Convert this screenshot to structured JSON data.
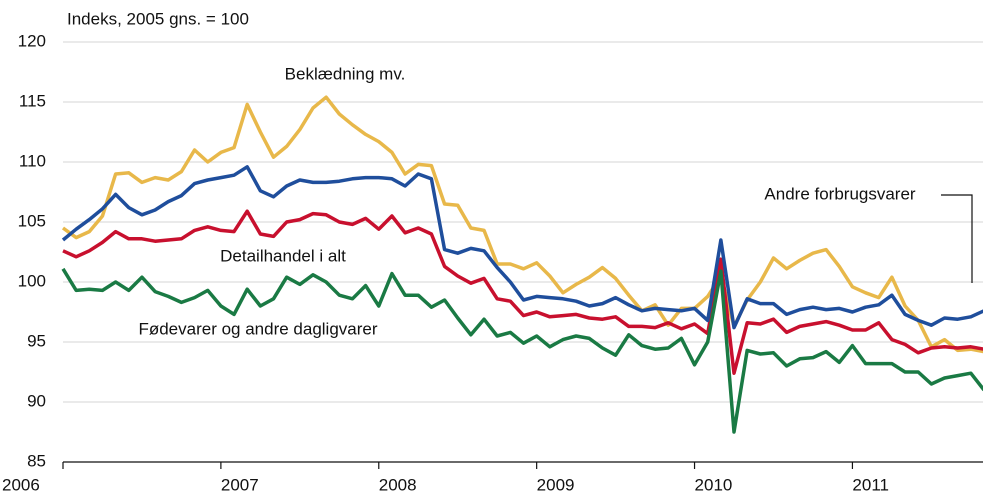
{
  "chart_data": {
    "type": "line",
    "ylabel": "Indeks, 2005 gns. = 100",
    "categories": [
      "2006",
      null,
      null,
      null,
      null,
      null,
      null,
      null,
      null,
      null,
      null,
      null,
      "2007",
      null,
      null,
      null,
      null,
      null,
      null,
      null,
      null,
      null,
      null,
      null,
      "2008",
      null,
      null,
      null,
      null,
      null,
      null,
      null,
      null,
      null,
      null,
      null,
      "2009",
      null,
      null,
      null,
      null,
      null,
      null,
      null,
      null,
      null,
      null,
      null,
      "2010",
      null,
      null,
      null,
      null,
      null,
      null,
      null,
      null,
      null,
      null,
      null,
      "2011",
      null,
      null,
      null,
      null,
      null,
      null,
      null,
      null,
      null,
      null
    ],
    "ylim": [
      85,
      120
    ],
    "yticks": [
      85,
      90,
      95,
      100,
      105,
      110,
      115,
      120
    ],
    "grid": true,
    "series": [
      {
        "name": "Beklædning mv.",
        "color": "#e8b84a",
        "values": [
          104.5,
          103.7,
          104.2,
          105.5,
          109,
          109.1,
          108.3,
          108.7,
          108.5,
          109.2,
          111,
          110,
          110.8,
          111.2,
          114.8,
          112.5,
          110.4,
          111.3,
          112.7,
          114.5,
          115.4,
          114,
          113.1,
          112.3,
          111.7,
          110.8,
          109,
          109.8,
          109.7,
          106.5,
          106.4,
          104.5,
          104.3,
          101.5,
          101.5,
          101.1,
          101.6,
          100.5,
          99.1,
          99.8,
          100.4,
          101.2,
          100.3,
          98.9,
          97.6,
          98.1,
          96.4,
          97.8,
          97.8,
          98.8,
          100.5,
          96.3,
          98.5,
          100,
          102,
          101.1,
          101.8,
          102.4,
          102.7,
          101.3,
          99.6,
          99.1,
          98.7,
          100.4,
          98,
          96.8,
          94.6,
          95.2,
          94.3,
          94.4,
          94.2
        ]
      },
      {
        "name": "Andre forbrugsvarer",
        "color": "#1f4e9c",
        "values": [
          103.5,
          104.4,
          105.2,
          106.1,
          107.3,
          106.2,
          105.6,
          106,
          106.7,
          107.2,
          108.2,
          108.5,
          108.7,
          108.9,
          109.6,
          107.6,
          107.1,
          108,
          108.5,
          108.3,
          108.3,
          108.4,
          108.6,
          108.7,
          108.7,
          108.6,
          108,
          109,
          108.6,
          102.7,
          102.4,
          102.8,
          102.6,
          101.2,
          100,
          98.5,
          98.8,
          98.7,
          98.6,
          98.4,
          98,
          98.2,
          98.7,
          98.1,
          97.6,
          97.8,
          97.7,
          97.6,
          97.8,
          96.8,
          103.5,
          96.2,
          98.6,
          98.2,
          98.2,
          97.3,
          97.7,
          97.9,
          97.7,
          97.8,
          97.5,
          97.9,
          98.1,
          98.9,
          97.3,
          96.8,
          96.4,
          97,
          96.9,
          97.1,
          97.6
        ]
      },
      {
        "name": "Detailhandel i alt",
        "color": "#c8102e",
        "values": [
          102.6,
          102.1,
          102.6,
          103.3,
          104.2,
          103.6,
          103.6,
          103.4,
          103.5,
          103.6,
          104.3,
          104.6,
          104.3,
          104.2,
          105.9,
          104,
          103.8,
          105,
          105.2,
          105.7,
          105.6,
          105,
          104.8,
          105.3,
          104.4,
          105.5,
          104.1,
          104.5,
          104,
          101.3,
          100.5,
          99.9,
          100.3,
          98.6,
          98.4,
          97.2,
          97.5,
          97.1,
          97.2,
          97.3,
          97,
          96.9,
          97.1,
          96.3,
          96.3,
          96.2,
          96.6,
          96.1,
          96.5,
          95.7,
          101.9,
          92.4,
          96.6,
          96.5,
          96.9,
          95.8,
          96.3,
          96.5,
          96.7,
          96.4,
          96,
          96,
          96.6,
          95.2,
          94.8,
          94.1,
          94.5,
          94.6,
          94.5,
          94.6,
          94.4
        ]
      },
      {
        "name": "Fødevarer og andre dagligvarer",
        "color": "#1a7a44",
        "values": [
          101.1,
          99.3,
          99.4,
          99.3,
          100,
          99.3,
          100.4,
          99.2,
          98.8,
          98.3,
          98.7,
          99.3,
          98,
          97.3,
          99.4,
          98,
          98.6,
          100.4,
          99.8,
          100.6,
          100,
          98.9,
          98.6,
          99.7,
          98,
          100.7,
          98.9,
          98.9,
          97.9,
          98.5,
          97,
          95.6,
          96.9,
          95.5,
          95.8,
          94.9,
          95.5,
          94.6,
          95.2,
          95.5,
          95.3,
          94.5,
          93.9,
          95.6,
          94.7,
          94.4,
          94.5,
          95.3,
          93.1,
          95,
          100.9,
          87.5,
          94.3,
          94,
          94.1,
          93,
          93.6,
          93.7,
          94.2,
          93.3,
          94.7,
          93.2,
          93.2,
          93.2,
          92.5,
          92.5,
          91.5,
          92,
          92.2,
          92.4,
          91
        ]
      }
    ]
  }
}
